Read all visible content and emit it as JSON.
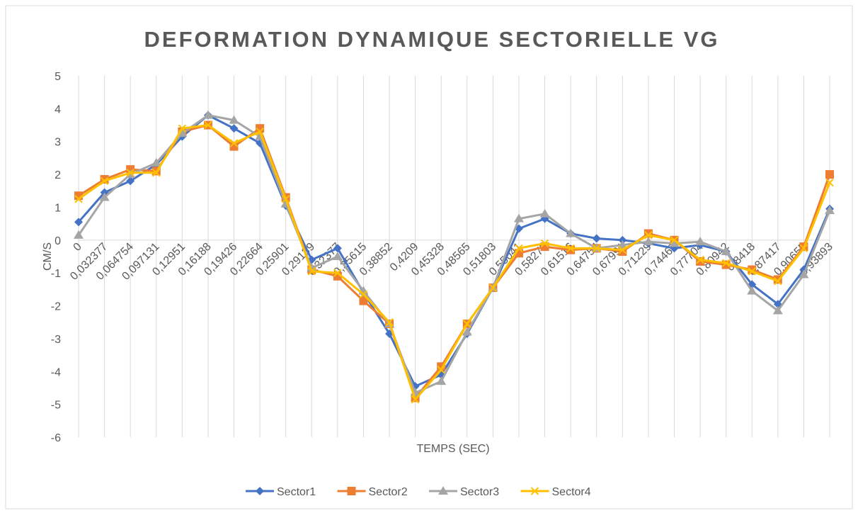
{
  "chart_data": {
    "type": "line",
    "title": "DEFORMATION DYNAMIQUE SECTORIELLE VG",
    "x_label": "TEMPS (SEC)",
    "y_label": "CM/S",
    "categories": [
      "0",
      "0,032377",
      "0,064754",
      "0,097131",
      "0,12951",
      "0,16188",
      "0,19426",
      "0,22664",
      "0,25901",
      "0,29139",
      "0,32377",
      "0,35615",
      "0,38852",
      "0,4209",
      "0,45328",
      "0,48565",
      "0,51803",
      "0,55041",
      "0,58278",
      "0,61516",
      "0,64754",
      "0,67991",
      "0,71229",
      "0,74467",
      "0,77704",
      "0,80942",
      "0,8418",
      "0,87417",
      "0,90655",
      "0,93893"
    ],
    "series": [
      {
        "name": "Sector1",
        "color": "#4472c4",
        "marker": "diamond",
        "values": [
          0.55,
          1.45,
          1.8,
          2.3,
          3.15,
          3.8,
          3.4,
          2.95,
          1.05,
          -0.6,
          -0.25,
          -1.6,
          -2.85,
          -4.45,
          -4.1,
          -2.85,
          -1.45,
          0.35,
          0.65,
          0.2,
          0.05,
          0,
          -0.1,
          -0.25,
          -0.15,
          -0.35,
          -1.35,
          -1.95,
          -0.9,
          0.95
        ]
      },
      {
        "name": "Sector2",
        "color": "#ed7d31",
        "marker": "square",
        "values": [
          1.35,
          1.85,
          2.15,
          2.1,
          3.3,
          3.5,
          2.85,
          3.4,
          1.3,
          -0.9,
          -1.1,
          -1.85,
          -2.55,
          -4.8,
          -3.85,
          -2.55,
          -1.45,
          -0.4,
          -0.2,
          -0.3,
          -0.25,
          -0.35,
          0.2,
          0,
          -0.65,
          -0.75,
          -0.9,
          -1.2,
          -0.2,
          2.0
        ]
      },
      {
        "name": "Sector3",
        "color": "#a5a5a5",
        "marker": "triangle",
        "values": [
          0.15,
          1.3,
          2.0,
          2.35,
          3.25,
          3.8,
          3.65,
          3.15,
          1.1,
          -0.85,
          -0.5,
          -1.55,
          -2.55,
          -4.65,
          -4.3,
          -2.8,
          -1.45,
          0.65,
          0.8,
          0.2,
          -0.25,
          -0.15,
          -0.05,
          -0.1,
          -0.05,
          -0.35,
          -1.55,
          -2.15,
          -1.05,
          0.9
        ]
      },
      {
        "name": "Sector4",
        "color": "#ffc000",
        "marker": "x",
        "values": [
          1.25,
          1.8,
          2.05,
          2.05,
          3.4,
          3.5,
          2.95,
          3.3,
          1.25,
          -0.95,
          -1.0,
          -1.65,
          -2.5,
          -4.85,
          -3.95,
          -2.55,
          -1.45,
          -0.25,
          -0.1,
          -0.25,
          -0.25,
          -0.3,
          0.15,
          0,
          -0.6,
          -0.7,
          -0.95,
          -1.25,
          -0.25,
          1.75
        ]
      }
    ],
    "ylim": [
      -6,
      5
    ],
    "yticks": [
      -6,
      -5,
      -4,
      -3,
      -2,
      -1,
      0,
      1,
      2,
      3,
      4,
      5
    ],
    "grid": true,
    "legend": "bottom"
  }
}
